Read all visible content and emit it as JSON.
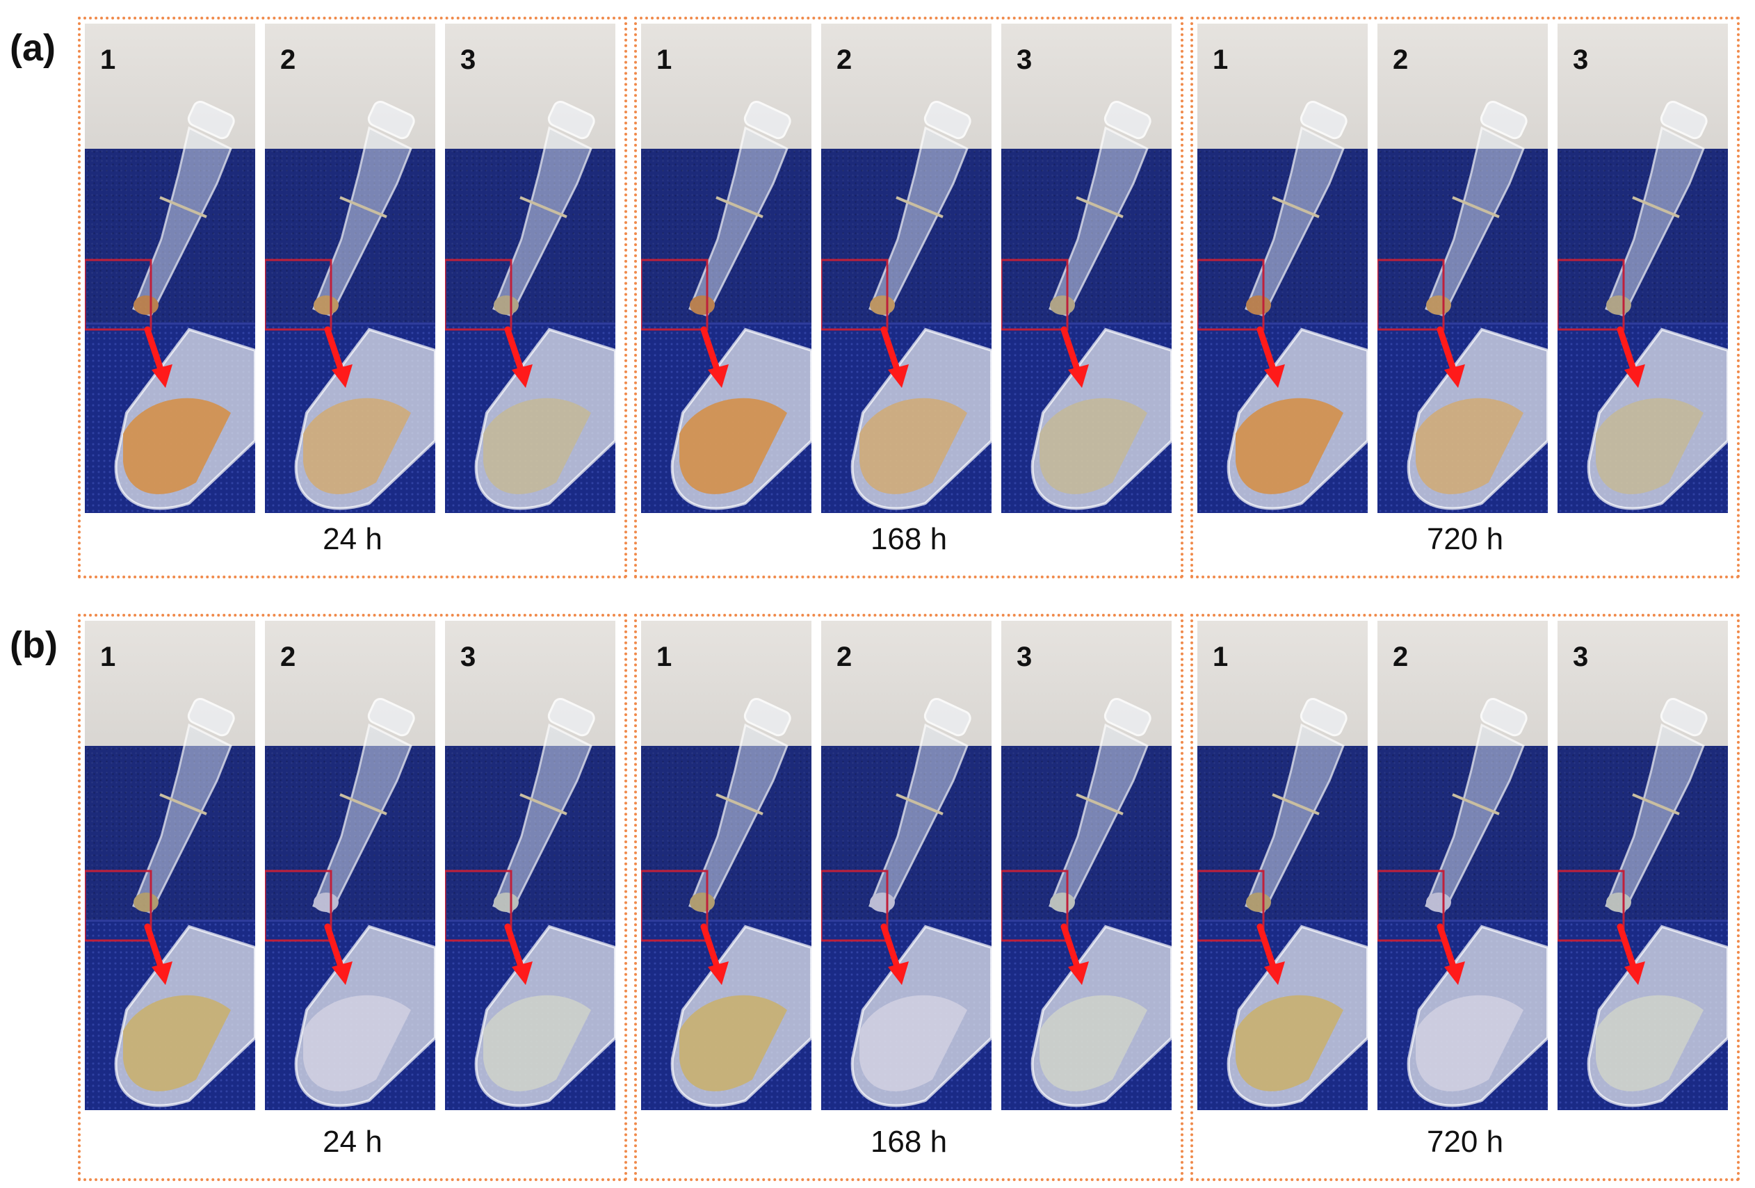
{
  "rows": [
    {
      "label": "(a)",
      "groups": [
        {
          "time": "24 h",
          "tubes": [
            "1",
            "2",
            "3"
          ]
        },
        {
          "time": "168 h",
          "tubes": [
            "1",
            "2",
            "3"
          ]
        },
        {
          "time": "720 h",
          "tubes": [
            "1",
            "2",
            "3"
          ]
        }
      ]
    },
    {
      "label": "(b)",
      "groups": [
        {
          "time": "24 h",
          "tubes": [
            "1",
            "2",
            "3"
          ]
        },
        {
          "time": "168 h",
          "tubes": [
            "1",
            "2",
            "3"
          ]
        },
        {
          "time": "720 h",
          "tubes": [
            "1",
            "2",
            "3"
          ]
        }
      ]
    }
  ],
  "colors": {
    "frame": "#f08a4b",
    "arrow": "#ff1a1a",
    "inset_box": "#c0203a",
    "cloth": "#1c2a7a",
    "wall": "#e6e3df"
  }
}
